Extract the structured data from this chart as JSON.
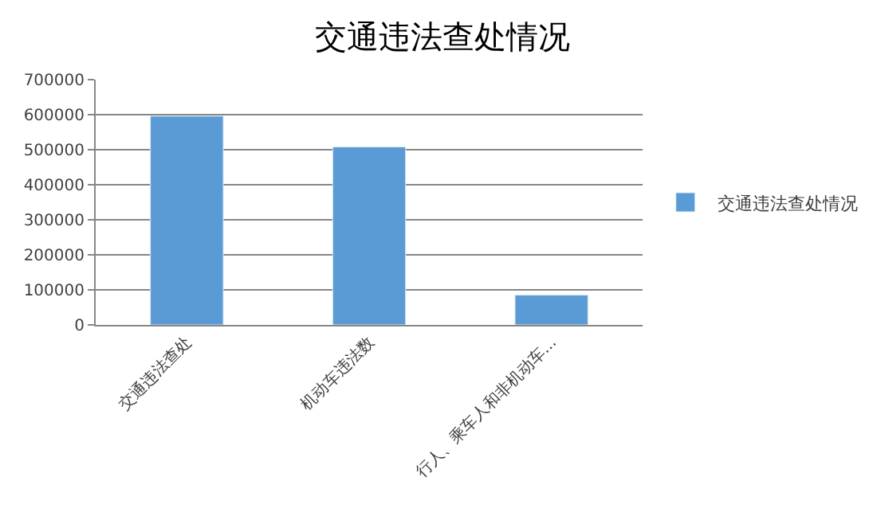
{
  "chart_data": {
    "type": "bar",
    "title": "交通违法查处情况",
    "categories": [
      "交通违法查处",
      "机动车违法数",
      "行人、乘车人和非机动车..."
    ],
    "series": [
      {
        "name": "交通违法查处情况",
        "color": "#5b9bd5",
        "values": [
          596000,
          508000,
          85000
        ]
      }
    ],
    "ylim": [
      0,
      700000
    ],
    "yticks": [
      0,
      100000,
      200000,
      300000,
      400000,
      500000,
      600000,
      700000
    ],
    "grid": "y",
    "legend": "right"
  }
}
